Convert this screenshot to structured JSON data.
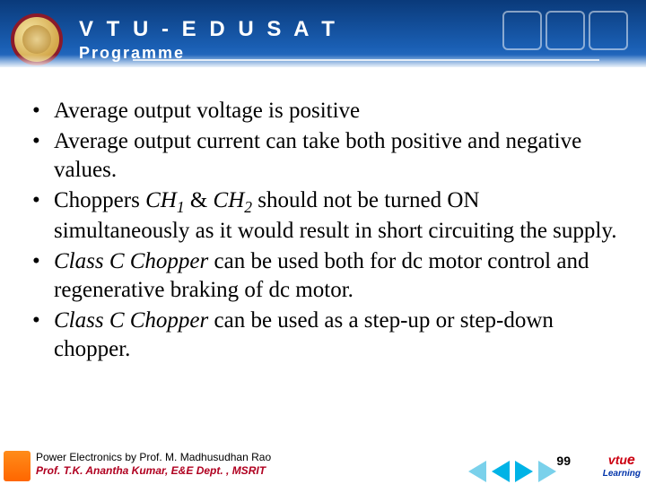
{
  "header": {
    "title": "V T U - E D U S A T",
    "subtitle": "Programme"
  },
  "bullets": [
    {
      "html": "Average output voltage  is positive"
    },
    {
      "html": "Average output current can take both positive and negative values."
    },
    {
      "html": "Choppers <em class='it'>CH<sub>1</sub></em> & <em class='it'>CH<sub>2</sub></em>  should not be turned ON simultaneously as it would result in short circuiting the supply."
    },
    {
      "html": "<em class='it'>Class C Chopper</em> can be used both for dc motor control and regenerative braking of dc motor."
    },
    {
      "html": "<em class='it'>Class C Chopper</em> can be used as a step-up or step-down chopper."
    }
  ],
  "footer": {
    "line1": "Power Electronics by Prof. M. Madhusudhan Rao",
    "line2": "Prof. T.K. Anantha Kumar, E&E Dept. , MSRIT",
    "page": "99",
    "elearn_brand_v": "vtu",
    "elearn_brand_e": "e",
    "elearn_brand_learn": "Learning"
  }
}
